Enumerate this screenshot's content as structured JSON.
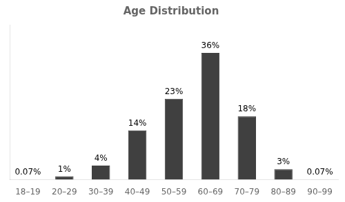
{
  "chart_data": {
    "type": "bar",
    "title": "Age Distribution",
    "categories": [
      "18–19",
      "20–29",
      "30–39",
      "40–49",
      "50–59",
      "60–69",
      "70–79",
      "80–89",
      "90–99"
    ],
    "values": [
      0.07,
      1,
      4,
      14,
      23,
      36,
      18,
      3,
      0.07
    ],
    "value_labels": [
      "0.07%",
      "1%",
      "4%",
      "14%",
      "23%",
      "36%",
      "18%",
      "3%",
      "0.07%"
    ],
    "color": "#404040",
    "ylim": [
      0,
      44
    ],
    "grid": false,
    "data_labels": true,
    "tick_labels": "x"
  }
}
